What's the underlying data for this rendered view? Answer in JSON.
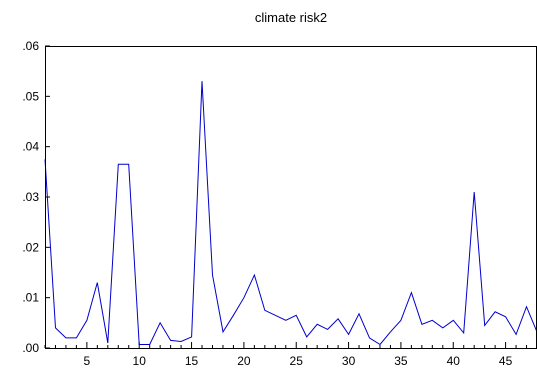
{
  "chart_data": {
    "type": "line",
    "title": "climate risk2",
    "xlabel": "",
    "ylabel": "",
    "xlim": [
      1,
      48
    ],
    "ylim": [
      0,
      0.06
    ],
    "grid": false,
    "x_ticks": [
      5,
      10,
      15,
      20,
      25,
      30,
      35,
      40,
      45
    ],
    "x_tick_labels": [
      "5",
      "10",
      "15",
      "20",
      "25",
      "30",
      "35",
      "40",
      "45"
    ],
    "y_ticks": [
      0,
      0.01,
      0.02,
      0.03,
      0.04,
      0.05,
      0.06
    ],
    "y_tick_labels": [
      ".00",
      ".01",
      ".02",
      ".03",
      ".04",
      ".05",
      ".06"
    ],
    "series": [
      {
        "color": "#0000cc",
        "x": [
          1,
          2,
          3,
          4,
          5,
          6,
          7,
          8,
          9,
          10,
          11,
          12,
          13,
          14,
          15,
          16,
          17,
          18,
          19,
          20,
          21,
          22,
          23,
          24,
          25,
          26,
          27,
          28,
          29,
          30,
          31,
          32,
          33,
          34,
          35,
          36,
          37,
          38,
          39,
          40,
          41,
          42,
          43,
          44,
          45,
          46,
          47,
          48
        ],
        "y": [
          0.0375,
          0.004,
          0.002,
          0.002,
          0.0055,
          0.013,
          0.001,
          0.0365,
          0.0365,
          0.0007,
          0.0007,
          0.005,
          0.0015,
          0.0013,
          0.0022,
          0.053,
          0.0145,
          0.0032,
          0.0065,
          0.01,
          0.0145,
          0.0075,
          0.0065,
          0.0055,
          0.0065,
          0.0022,
          0.0047,
          0.0037,
          0.0058,
          0.0027,
          0.0068,
          0.002,
          0.0007,
          0.0032,
          0.0055,
          0.011,
          0.0047,
          0.0055,
          0.004,
          0.0055,
          0.003,
          0.031,
          0.0045,
          0.0072,
          0.0062,
          0.0027,
          0.0082,
          0.0032
        ]
      }
    ]
  }
}
